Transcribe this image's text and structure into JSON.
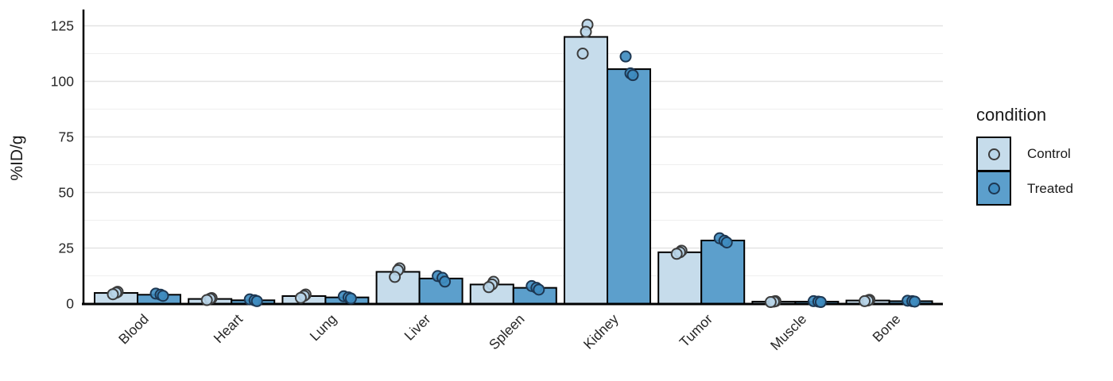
{
  "chart_data": {
    "type": "bar",
    "title": "",
    "xlabel": "",
    "ylabel": "%ID/g",
    "legend_title": "condition",
    "legend_position": "right",
    "grid": "horizontal major and minor, light gray, no vertical grid",
    "categories": [
      "Blood",
      "Heart",
      "Lung",
      "Liver",
      "Spleen",
      "Kidney",
      "Tumor",
      "Muscle",
      "Bone"
    ],
    "y_ticks": [
      0,
      25,
      50,
      75,
      100,
      125
    ],
    "y_minor_ticks": [
      12.5,
      37.5,
      62.5,
      87.5,
      112.5
    ],
    "ylim": [
      0,
      132
    ],
    "bar_outline_color": "#000000",
    "axis_line_color": "#000000",
    "major_grid_color": "#e3e3e3",
    "minor_grid_color": "#efefef",
    "series": [
      {
        "name": "Control",
        "bar_fill": "#c6dcEB",
        "point_fill": "#b9d5e8",
        "point_stroke": "#3c3c3c",
        "values": [
          4.8,
          2.1,
          3.4,
          14.3,
          8.6,
          120,
          23.1,
          0.9,
          1.4
        ],
        "points": [
          [
            5.3,
            4.9,
            4.2
          ],
          [
            2.5,
            2.2,
            1.6
          ],
          [
            4.1,
            3.5,
            2.6
          ],
          [
            15.9,
            15.0,
            12.0
          ],
          [
            9.8,
            8.6,
            7.4
          ],
          [
            125.5,
            122.3,
            112.5
          ],
          [
            23.8,
            23.1,
            22.4
          ],
          [
            1.1,
            0.9,
            0.7
          ],
          [
            1.7,
            1.4,
            1.1
          ]
        ]
      },
      {
        "name": "Treated",
        "bar_fill": "#5c9fcc",
        "point_fill": "#3f8cc0",
        "point_stroke": "#1d3752",
        "values": [
          4.0,
          1.5,
          2.8,
          11.3,
          7.1,
          105.5,
          28.4,
          0.9,
          1.1
        ],
        "points": [
          [
            4.5,
            4.0,
            3.5
          ],
          [
            1.9,
            1.5,
            1.1
          ],
          [
            3.3,
            2.8,
            2.3
          ],
          [
            12.4,
            11.6,
            9.9
          ],
          [
            7.9,
            7.1,
            6.3
          ],
          [
            111.2,
            103.6,
            102.8
          ],
          [
            29.4,
            28.3,
            27.5
          ],
          [
            1.1,
            0.9,
            0.7
          ],
          [
            1.3,
            1.1,
            0.9
          ]
        ]
      }
    ]
  }
}
